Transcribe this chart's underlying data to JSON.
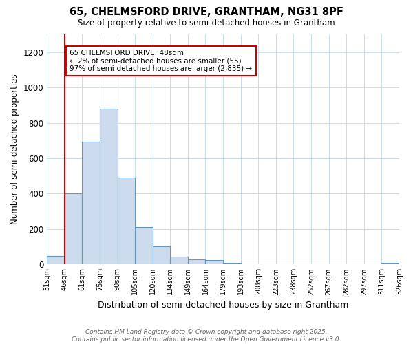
{
  "title1": "65, CHELMSFORD DRIVE, GRANTHAM, NG31 8PF",
  "title2": "Size of property relative to semi-detached houses in Grantham",
  "xlabel": "Distribution of semi-detached houses by size in Grantham",
  "ylabel": "Number of semi-detached properties",
  "bar_values": [
    46,
    400,
    693,
    880,
    490,
    213,
    103,
    45,
    28,
    25,
    8,
    3,
    0,
    3,
    1,
    0,
    0,
    0,
    0,
    10
  ],
  "bar_labels": [
    "31sqm",
    "46sqm",
    "61sqm",
    "75sqm",
    "90sqm",
    "105sqm",
    "120sqm",
    "134sqm",
    "149sqm",
    "164sqm",
    "179sqm",
    "193sqm",
    "208sqm",
    "223sqm",
    "238sqm",
    "252sqm",
    "267sqm",
    "282sqm",
    "297sqm",
    "311sqm",
    "326sqm"
  ],
  "bar_color": "#ccdcee",
  "bar_edge_color": "#6699bb",
  "ylim": [
    0,
    1300
  ],
  "yticks": [
    0,
    200,
    400,
    600,
    800,
    1000,
    1200
  ],
  "vline_color": "#cc0000",
  "annotation_title": "65 CHELMSFORD DRIVE: 48sqm",
  "annotation_line2": "← 2% of semi-detached houses are smaller (55)",
  "annotation_line3": "97% of semi-detached houses are larger (2,835) →",
  "annotation_box_color": "#cc0000",
  "footer1": "Contains HM Land Registry data © Crown copyright and database right 2025.",
  "footer2": "Contains public sector information licensed under the Open Government Licence v3.0.",
  "bg_color": "#ffffff",
  "grid_color": "#ccddee"
}
